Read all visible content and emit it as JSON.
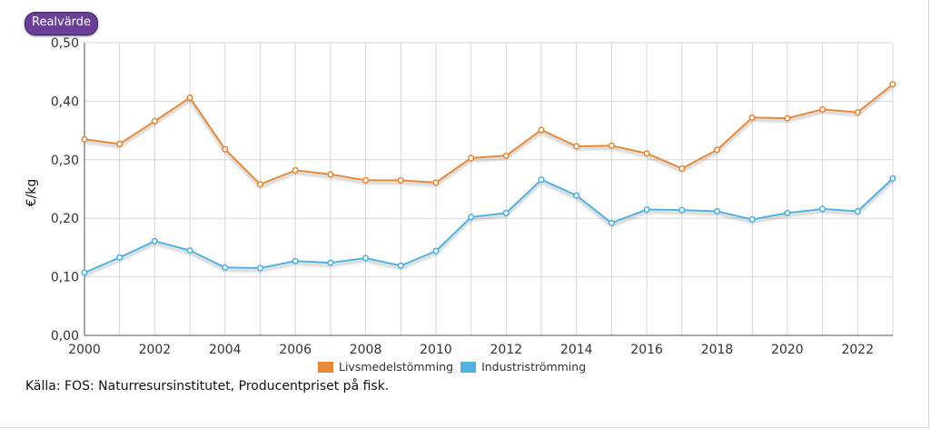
{
  "badge": {
    "label": "Realvärde"
  },
  "source": "Källa: FOS: Naturresursinstitutet, Producentpriset på fisk.",
  "chart_data": {
    "type": "line",
    "ylabel": "€/kg",
    "ylim": [
      0,
      0.5
    ],
    "xlim": [
      2000,
      2023
    ],
    "x_ticks": [
      "2000",
      "2002",
      "2004",
      "2006",
      "2008",
      "2010",
      "2012",
      "2014",
      "2016",
      "2018",
      "2020",
      "2022"
    ],
    "y_ticks": [
      "0,00",
      "0,10",
      "0,20",
      "0,30",
      "0,40",
      "0,50"
    ],
    "grid": true,
    "legend_position": "bottom-center",
    "x": [
      2000,
      2001,
      2002,
      2003,
      2004,
      2005,
      2006,
      2007,
      2008,
      2009,
      2010,
      2011,
      2012,
      2013,
      2014,
      2015,
      2016,
      2017,
      2018,
      2019,
      2020,
      2021,
      2022,
      2023
    ],
    "series": [
      {
        "name": "Livsmedelstömming",
        "color": "#e8893a",
        "values": [
          0.335,
          0.327,
          0.366,
          0.406,
          0.318,
          0.258,
          0.282,
          0.275,
          0.265,
          0.265,
          0.261,
          0.303,
          0.307,
          0.351,
          0.323,
          0.324,
          0.311,
          0.285,
          0.317,
          0.372,
          0.371,
          0.386,
          0.381,
          0.429
        ]
      },
      {
        "name": "Industriströmming",
        "color": "#4fb2e3",
        "values": [
          0.107,
          0.133,
          0.161,
          0.145,
          0.116,
          0.115,
          0.127,
          0.124,
          0.132,
          0.119,
          0.144,
          0.202,
          0.209,
          0.266,
          0.239,
          0.192,
          0.215,
          0.214,
          0.212,
          0.198,
          0.209,
          0.216,
          0.212,
          0.268
        ]
      }
    ]
  }
}
